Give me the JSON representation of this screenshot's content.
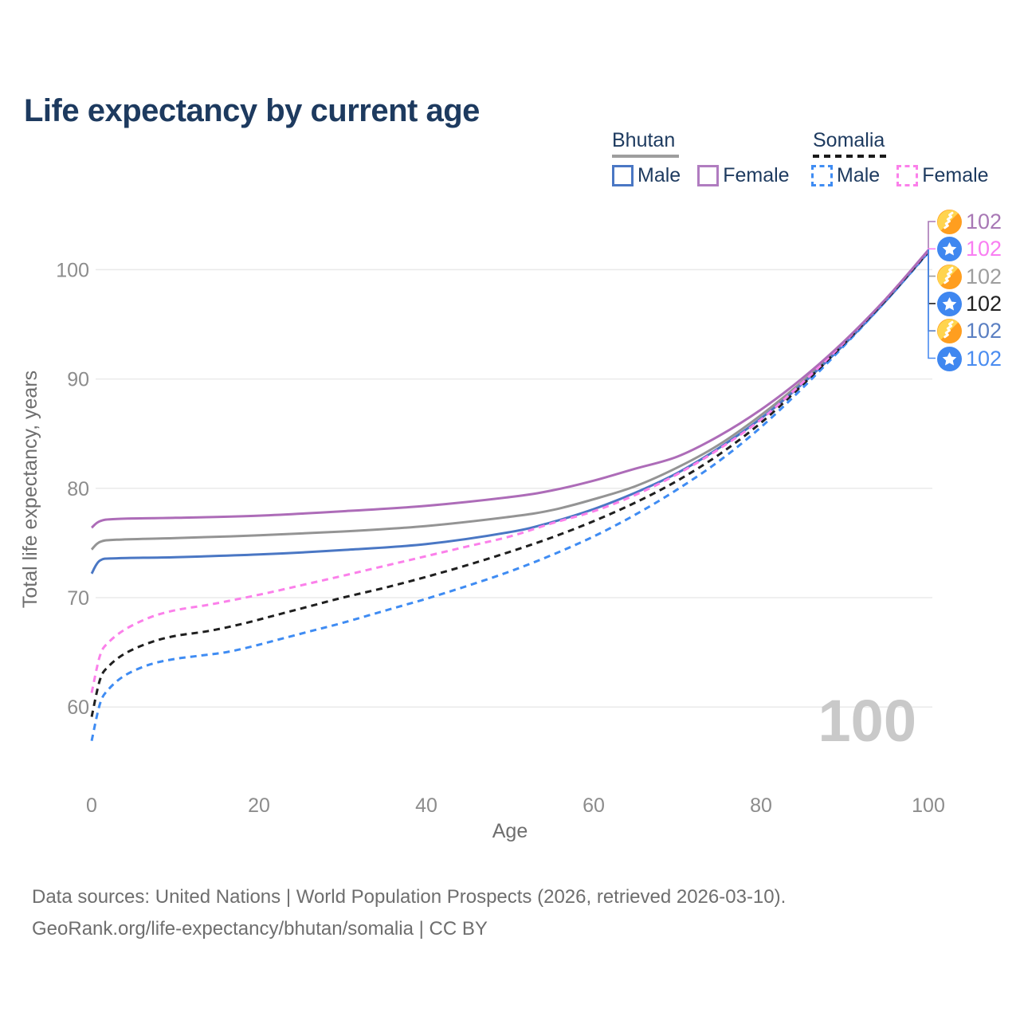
{
  "title": "Life expectancy by current age",
  "legend": {
    "groups": [
      {
        "label": "Bhutan",
        "line_style": "solid",
        "underline_color": "#9e9e9e",
        "items": [
          {
            "label": "Male",
            "color": "#4a77c4",
            "dashed": false
          },
          {
            "label": "Female",
            "color": "#b07cc0",
            "dashed": false
          }
        ]
      },
      {
        "label": "Somalia",
        "line_style": "dashed",
        "underline_color": "#1a1a1a",
        "items": [
          {
            "label": "Male",
            "color": "#3f8cf3",
            "dashed": true
          },
          {
            "label": "Female",
            "color": "#fb80ea",
            "dashed": true
          }
        ]
      }
    ]
  },
  "age_indicator": {
    "value": "100"
  },
  "footer": {
    "line1": "Data sources: United Nations | World Population Prospects (2026, retrieved 2026-03-10).",
    "line2": "GeoRank.org/life-expectancy/bhutan/somalia | CC BY"
  },
  "chart_data": {
    "type": "line",
    "title": "Life expectancy by current age",
    "xlabel": "Age",
    "ylabel": "Total life expectancy, years",
    "xlim": [
      0,
      100
    ],
    "ylim": [
      56,
      104
    ],
    "xticks": [
      0,
      20,
      40,
      60,
      80,
      100
    ],
    "yticks": [
      60,
      70,
      80,
      90,
      100
    ],
    "grid": "horizontal-only",
    "gridline_color": "#eaeaea",
    "tick_color": "#8c8c8c",
    "axis_title_color": "#6e6e6e",
    "legend_position": "top-right",
    "series": [
      {
        "id": "bhutan-female",
        "country": "Bhutan",
        "sex": "Female",
        "flag": "bhutan",
        "color": "#ad6cb8",
        "label_color": "#a878b5",
        "dashed": false,
        "end_label": "102",
        "points": [
          [
            0,
            76.4
          ],
          [
            1,
            77.0
          ],
          [
            3,
            77.2
          ],
          [
            10,
            77.3
          ],
          [
            20,
            77.5
          ],
          [
            30,
            77.9
          ],
          [
            40,
            78.4
          ],
          [
            50,
            79.2
          ],
          [
            55,
            79.8
          ],
          [
            60,
            80.7
          ],
          [
            65,
            81.8
          ],
          [
            70,
            82.9
          ],
          [
            75,
            84.8
          ],
          [
            80,
            87.2
          ],
          [
            85,
            90.1
          ],
          [
            90,
            93.5
          ],
          [
            95,
            97.4
          ],
          [
            100,
            101.8
          ]
        ]
      },
      {
        "id": "somalia-female",
        "country": "Somalia",
        "sex": "Female",
        "flag": "somalia",
        "color": "#fb80ea",
        "label_color": "#f97ef2",
        "dashed": true,
        "end_label": "102",
        "points": [
          [
            0,
            61.3
          ],
          [
            1,
            64.7
          ],
          [
            2,
            65.9
          ],
          [
            4,
            67.1
          ],
          [
            7,
            68.2
          ],
          [
            10,
            68.85
          ],
          [
            14,
            69.35
          ],
          [
            18,
            69.95
          ],
          [
            22,
            70.6
          ],
          [
            26,
            71.3
          ],
          [
            30,
            72.0
          ],
          [
            35,
            72.9
          ],
          [
            40,
            73.8
          ],
          [
            45,
            74.7
          ],
          [
            50,
            75.6
          ],
          [
            55,
            76.8
          ],
          [
            60,
            77.9
          ],
          [
            65,
            79.4
          ],
          [
            70,
            81.3
          ],
          [
            75,
            83.6
          ],
          [
            80,
            86.3
          ],
          [
            85,
            89.7
          ],
          [
            90,
            93.4
          ],
          [
            95,
            97.4
          ],
          [
            100,
            101.75
          ]
        ]
      },
      {
        "id": "bhutan-total",
        "country": "Bhutan",
        "sex": "Both",
        "flag": "bhutan",
        "color": "#949494",
        "label_color": "#9e9e9e",
        "dashed": false,
        "end_label": "102",
        "points": [
          [
            0,
            74.4
          ],
          [
            1,
            75.1
          ],
          [
            3,
            75.3
          ],
          [
            10,
            75.45
          ],
          [
            20,
            75.7
          ],
          [
            30,
            76.05
          ],
          [
            40,
            76.55
          ],
          [
            50,
            77.4
          ],
          [
            55,
            78.0
          ],
          [
            60,
            79.0
          ],
          [
            65,
            80.2
          ],
          [
            70,
            81.9
          ],
          [
            75,
            84.0
          ],
          [
            80,
            86.7
          ],
          [
            85,
            89.8
          ],
          [
            90,
            93.3
          ],
          [
            95,
            97.3
          ],
          [
            100,
            101.7
          ]
        ]
      },
      {
        "id": "somalia-total",
        "country": "Somalia",
        "sex": "Both",
        "flag": "somalia",
        "color": "#1f1f1f",
        "label_color": "#222222",
        "dashed": true,
        "end_label": "102",
        "points": [
          [
            0,
            59.1
          ],
          [
            1,
            62.5
          ],
          [
            2,
            63.7
          ],
          [
            4,
            64.9
          ],
          [
            7,
            65.9
          ],
          [
            10,
            66.5
          ],
          [
            14,
            66.95
          ],
          [
            18,
            67.6
          ],
          [
            22,
            68.4
          ],
          [
            26,
            69.2
          ],
          [
            30,
            70.0
          ],
          [
            35,
            70.9
          ],
          [
            40,
            71.9
          ],
          [
            45,
            73.0
          ],
          [
            50,
            74.2
          ],
          [
            55,
            75.5
          ],
          [
            60,
            77.0
          ],
          [
            65,
            78.7
          ],
          [
            70,
            80.7
          ],
          [
            75,
            83.1
          ],
          [
            80,
            86.0
          ],
          [
            85,
            89.5
          ],
          [
            90,
            93.3
          ],
          [
            95,
            97.3
          ],
          [
            100,
            101.65
          ]
        ]
      },
      {
        "id": "bhutan-male",
        "country": "Bhutan",
        "sex": "Male",
        "flag": "bhutan",
        "color": "#4a77c4",
        "label_color": "#5a7fc2",
        "dashed": false,
        "end_label": "102",
        "points": [
          [
            0,
            72.2
          ],
          [
            1,
            73.4
          ],
          [
            3,
            73.6
          ],
          [
            10,
            73.7
          ],
          [
            20,
            73.95
          ],
          [
            30,
            74.35
          ],
          [
            40,
            74.9
          ],
          [
            50,
            76.0
          ],
          [
            55,
            76.9
          ],
          [
            60,
            78.1
          ],
          [
            65,
            79.6
          ],
          [
            70,
            81.4
          ],
          [
            75,
            83.7
          ],
          [
            80,
            86.4
          ],
          [
            85,
            89.6
          ],
          [
            90,
            93.2
          ],
          [
            95,
            97.2
          ],
          [
            100,
            101.6
          ]
        ]
      },
      {
        "id": "somalia-male",
        "country": "Somalia",
        "sex": "Male",
        "flag": "somalia",
        "color": "#3f8cf3",
        "label_color": "#4a8cf0",
        "dashed": true,
        "end_label": "102",
        "points": [
          [
            0,
            56.9
          ],
          [
            1,
            60.3
          ],
          [
            2,
            61.6
          ],
          [
            4,
            62.9
          ],
          [
            7,
            63.9
          ],
          [
            10,
            64.4
          ],
          [
            13,
            64.7
          ],
          [
            16,
            65.0
          ],
          [
            19,
            65.5
          ],
          [
            22,
            66.1
          ],
          [
            26,
            66.9
          ],
          [
            30,
            67.7
          ],
          [
            35,
            68.8
          ],
          [
            40,
            69.9
          ],
          [
            45,
            71.1
          ],
          [
            50,
            72.4
          ],
          [
            55,
            73.9
          ],
          [
            60,
            75.6
          ],
          [
            65,
            77.6
          ],
          [
            70,
            79.9
          ],
          [
            75,
            82.5
          ],
          [
            80,
            85.6
          ],
          [
            85,
            89.2
          ],
          [
            90,
            93.1
          ],
          [
            95,
            97.2
          ],
          [
            100,
            101.55
          ]
        ]
      }
    ]
  }
}
